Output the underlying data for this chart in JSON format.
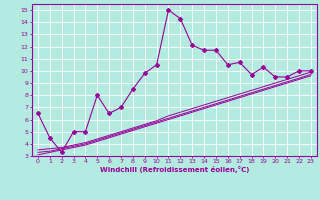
{
  "title": "",
  "xlabel": "Windchill (Refroidissement éolien,°C)",
  "ylabel": "",
  "bg_color": "#b3ebe1",
  "grid_color": "#ffffff",
  "line_color": "#990099",
  "xlim": [
    -0.5,
    23.5
  ],
  "ylim": [
    3,
    15.5
  ],
  "xticks": [
    0,
    1,
    2,
    3,
    4,
    5,
    6,
    7,
    8,
    9,
    10,
    11,
    12,
    13,
    14,
    15,
    16,
    17,
    18,
    19,
    20,
    21,
    22,
    23
  ],
  "yticks": [
    3,
    4,
    5,
    6,
    7,
    8,
    9,
    10,
    11,
    12,
    13,
    14,
    15
  ],
  "main_x": [
    0,
    1,
    2,
    3,
    4,
    5,
    6,
    7,
    8,
    9,
    10,
    11,
    12,
    13,
    14,
    15,
    16,
    17,
    18,
    19,
    20,
    21,
    22,
    23
  ],
  "main_y": [
    6.5,
    4.5,
    3.3,
    5.0,
    5.0,
    8.0,
    6.5,
    7.0,
    8.5,
    9.8,
    10.5,
    15.0,
    14.3,
    12.1,
    11.7,
    11.7,
    10.5,
    10.7,
    9.7,
    10.3,
    9.5,
    9.5,
    10.0,
    10.0
  ],
  "line2_x": [
    0,
    1,
    2,
    3,
    4,
    5,
    6,
    7,
    8,
    9,
    10,
    11,
    12,
    13,
    14,
    15,
    16,
    17,
    18,
    19,
    20,
    21,
    22,
    23
  ],
  "line2_y": [
    3.5,
    3.6,
    3.7,
    3.9,
    4.1,
    4.4,
    4.7,
    5.0,
    5.3,
    5.6,
    5.9,
    6.3,
    6.6,
    6.9,
    7.2,
    7.5,
    7.8,
    8.1,
    8.4,
    8.7,
    9.0,
    9.3,
    9.6,
    9.9
  ],
  "line3_x": [
    0,
    1,
    2,
    3,
    4,
    5,
    6,
    7,
    8,
    9,
    10,
    11,
    12,
    13,
    14,
    15,
    16,
    17,
    18,
    19,
    20,
    21,
    22,
    23
  ],
  "line3_y": [
    3.3,
    3.4,
    3.6,
    3.8,
    4.0,
    4.3,
    4.6,
    4.9,
    5.2,
    5.5,
    5.8,
    6.1,
    6.4,
    6.7,
    7.0,
    7.3,
    7.6,
    7.9,
    8.2,
    8.5,
    8.8,
    9.1,
    9.4,
    9.7
  ],
  "line4_x": [
    0,
    1,
    2,
    3,
    4,
    5,
    6,
    7,
    8,
    9,
    10,
    11,
    12,
    13,
    14,
    15,
    16,
    17,
    18,
    19,
    20,
    21,
    22,
    23
  ],
  "line4_y": [
    3.1,
    3.3,
    3.5,
    3.7,
    3.9,
    4.2,
    4.5,
    4.8,
    5.1,
    5.4,
    5.7,
    6.0,
    6.3,
    6.6,
    6.9,
    7.2,
    7.5,
    7.8,
    8.1,
    8.4,
    8.7,
    9.0,
    9.3,
    9.6
  ]
}
